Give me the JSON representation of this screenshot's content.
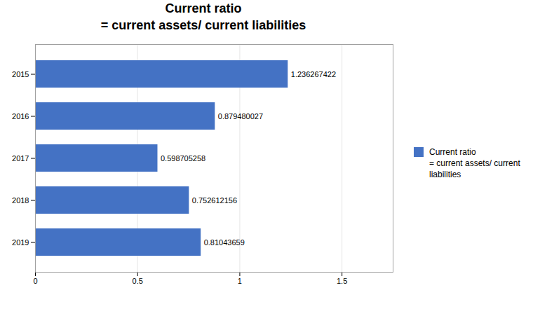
{
  "chart_data": {
    "type": "bar",
    "orientation": "horizontal",
    "title": "Current ratio",
    "subtitle": "= current assets/ current liabilities",
    "categories": [
      "2015",
      "2016",
      "2017",
      "2018",
      "2019"
    ],
    "series": [
      {
        "name": "Current ratio\n= current assets/ current\nliabilities",
        "color": "#4472C4",
        "values": [
          1.236267422,
          0.879480027,
          0.598705258,
          0.752612156,
          0.81043659
        ]
      }
    ],
    "xlim": [
      0,
      1.75
    ],
    "xticks": [
      0,
      0.5,
      1.0,
      1.5
    ],
    "grid": true,
    "legend": "right",
    "data_labels": true
  }
}
